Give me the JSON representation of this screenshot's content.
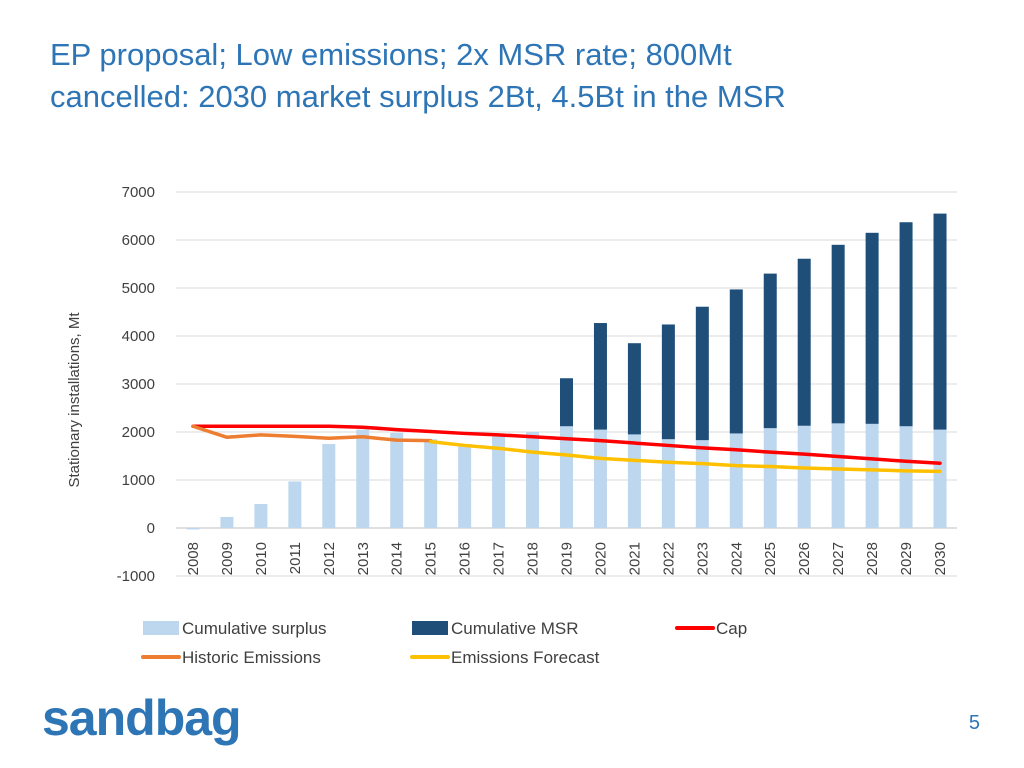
{
  "title": {
    "line1": "EP proposal; Low emissions; 2x MSR rate; 800Mt",
    "line2": "cancelled: 2030 market surplus 2Bt, 4.5Bt in the MSR"
  },
  "logo": "sandbag",
  "page_number": "5",
  "colors": {
    "surplus": "#bdd7ee",
    "msr": "#1f4e79",
    "cap": "#ff0000",
    "historic": "#ed7d31",
    "forecast": "#ffc000",
    "title": "#2e75b6"
  },
  "chart_data": {
    "type": "bar",
    "ylabel": "Stationary installations, Mt",
    "ylim": [
      -1000,
      7000
    ],
    "yticks": [
      -1000,
      0,
      1000,
      2000,
      3000,
      4000,
      5000,
      6000,
      7000
    ],
    "categories": [
      "2008",
      "2009",
      "2010",
      "2011",
      "2012",
      "2013",
      "2014",
      "2015",
      "2016",
      "2017",
      "2018",
      "2019",
      "2020",
      "2021",
      "2022",
      "2023",
      "2024",
      "2025",
      "2026",
      "2027",
      "2028",
      "2029",
      "2030"
    ],
    "legend": {
      "surplus": "Cumulative surplus",
      "msr": "Cumulative MSR",
      "cap": "Cap",
      "historic": "Historic Emissions",
      "forecast": "Emissions Forecast"
    },
    "series": [
      {
        "name": "Cumulative surplus",
        "kind": "bar",
        "key": "surplus",
        "values": [
          -30,
          230,
          500,
          970,
          1750,
          2050,
          1980,
          1850,
          1750,
          1950,
          2000,
          2120,
          2050,
          1950,
          1850,
          1830,
          1970,
          2080,
          2130,
          2180,
          2170,
          2120,
          2050
        ]
      },
      {
        "name": "Cumulative MSR",
        "kind": "bar",
        "key": "msr",
        "values": [
          0,
          0,
          0,
          0,
          0,
          0,
          0,
          0,
          0,
          0,
          0,
          1000,
          2220,
          1900,
          2390,
          2780,
          3000,
          3220,
          3480,
          3720,
          3980,
          4250,
          4500
        ]
      },
      {
        "name": "Cap",
        "kind": "line",
        "key": "cap",
        "values": [
          2120,
          2120,
          2120,
          2120,
          2120,
          2100,
          2050,
          2010,
          1970,
          1940,
          1900,
          1860,
          1820,
          1770,
          1720,
          1670,
          1630,
          1580,
          1540,
          1490,
          1440,
          1390,
          1350
        ]
      },
      {
        "name": "Historic Emissions",
        "kind": "line",
        "key": "historic",
        "values": [
          2120,
          1890,
          1940,
          1910,
          1870,
          1900,
          1830,
          1820,
          null,
          null,
          null,
          null,
          null,
          null,
          null,
          null,
          null,
          null,
          null,
          null,
          null,
          null,
          null
        ]
      },
      {
        "name": "Emissions Forecast",
        "kind": "line",
        "key": "forecast",
        "values": [
          null,
          null,
          null,
          null,
          null,
          null,
          null,
          1800,
          1720,
          1660,
          1580,
          1520,
          1450,
          1410,
          1370,
          1340,
          1300,
          1280,
          1250,
          1230,
          1210,
          1190,
          1180
        ]
      }
    ]
  }
}
